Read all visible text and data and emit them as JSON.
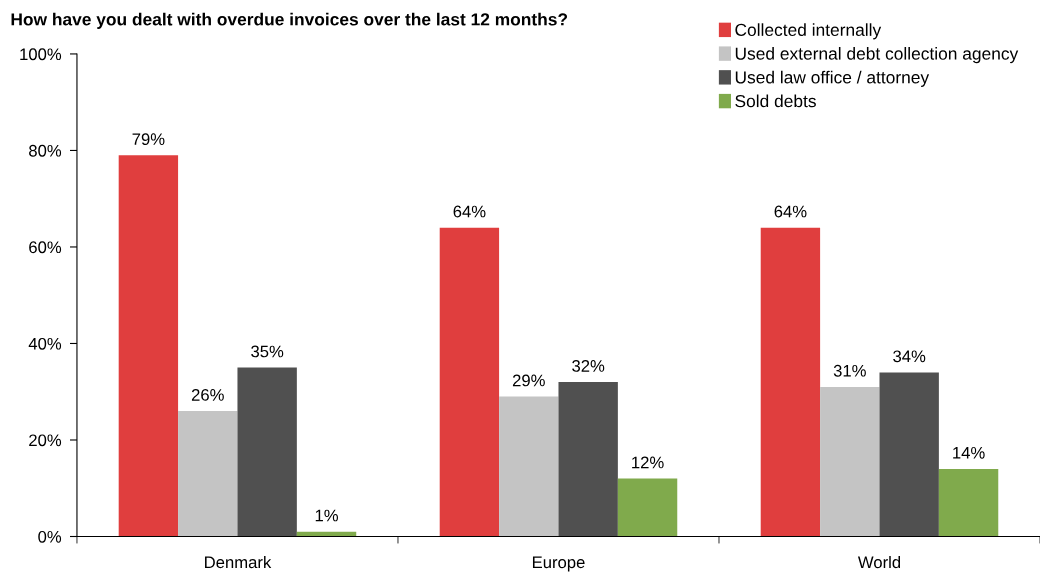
{
  "chart_data": {
    "type": "bar",
    "title": "How have you dealt with overdue invoices over the last 12 months?",
    "categories": [
      "Denmark",
      "Europe",
      "World"
    ],
    "series": [
      {
        "name": "Collected internally",
        "color": "#e03e3e",
        "values": [
          79,
          64,
          64
        ],
        "value_labels": [
          "79%",
          "64%",
          "64%"
        ]
      },
      {
        "name": "Used external debt collection agency",
        "color": "#c4c4c4",
        "values": [
          26,
          29,
          31
        ],
        "value_labels": [
          "26%",
          "29%",
          "31%"
        ]
      },
      {
        "name": "Used law office / attorney",
        "color": "#505050",
        "values": [
          35,
          32,
          34
        ],
        "value_labels": [
          "35%",
          "32%",
          "34%"
        ]
      },
      {
        "name": "Sold debts",
        "color": "#80aa4c",
        "values": [
          1,
          12,
          14
        ],
        "value_labels": [
          "1%",
          "12%",
          "14%"
        ]
      }
    ],
    "ylim": [
      0,
      100
    ],
    "yticks": [
      {
        "value": 0,
        "label": "0%"
      },
      {
        "value": 20,
        "label": "20%"
      },
      {
        "value": 40,
        "label": "40%"
      },
      {
        "value": 60,
        "label": "60%"
      },
      {
        "value": 80,
        "label": "80%"
      },
      {
        "value": 100,
        "label": "100%"
      }
    ],
    "grid": false,
    "legend": "top right"
  }
}
